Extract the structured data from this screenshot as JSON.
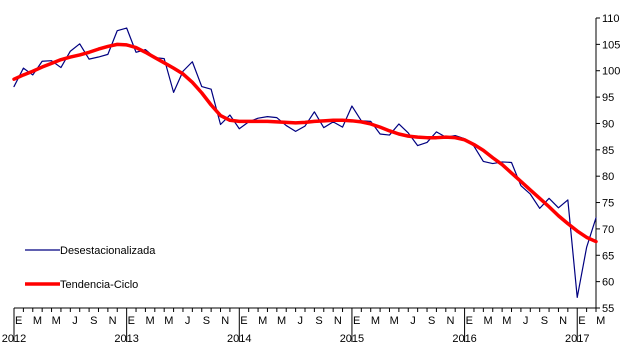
{
  "chart_data": {
    "type": "line",
    "title": "",
    "xlabel": "",
    "ylabel": "",
    "ylim": [
      55,
      110
    ],
    "yticks": [
      55,
      60,
      65,
      70,
      75,
      80,
      85,
      90,
      95,
      100,
      105,
      110
    ],
    "y_axis_side": "right",
    "grid": false,
    "legend_position": "bottom-left",
    "x_start": "2012-01",
    "month_tick_letters": [
      "E",
      "M",
      "M",
      "J",
      "S",
      "N"
    ],
    "year_labels": [
      "2012",
      "2013",
      "2014",
      "2015",
      "2016",
      "2017"
    ],
    "series": [
      {
        "name": "Desestacionalizada",
        "color": "#000080",
        "values": [
          97,
          100.5,
          99.2,
          101.8,
          101.9,
          100.6,
          103.7,
          105.1,
          102.2,
          102.6,
          103.1,
          107.6,
          108.1,
          103.5,
          104,
          102.5,
          102.3,
          95.9,
          99.9,
          101.7,
          97,
          96.5,
          89.8,
          91.6,
          89,
          90.3,
          91,
          91.3,
          91.1,
          89.6,
          88.5,
          89.5,
          92.2,
          89.2,
          90.3,
          89.3,
          93.3,
          90.5,
          90.4,
          88,
          87.8,
          89.9,
          88.2,
          85.8,
          86.4,
          88.4,
          87.4,
          87.7,
          87.1,
          85.7,
          82.8,
          82.4,
          82.7,
          82.6,
          78.2,
          76.6,
          73.9,
          75.8,
          74,
          75.5,
          57,
          66.5,
          72.1
        ]
      },
      {
        "name": "Tendencia-Ciclo",
        "color": "#ff0000",
        "values": [
          98.4,
          99.2,
          99.9,
          100.7,
          101.4,
          102.1,
          102.6,
          103,
          103.5,
          104.1,
          104.6,
          105,
          104.9,
          104.4,
          103.5,
          102.5,
          101.5,
          100.5,
          99.4,
          97.8,
          95.8,
          93.5,
          91.5,
          90.6,
          90.4,
          90.4,
          90.4,
          90.4,
          90.3,
          90.2,
          90.1,
          90.2,
          90.4,
          90.5,
          90.6,
          90.6,
          90.5,
          90.3,
          89.9,
          89.3,
          88.6,
          88,
          87.6,
          87.4,
          87.3,
          87.3,
          87.4,
          87.3,
          86.9,
          86,
          84.9,
          83.5,
          82.2,
          80.6,
          79,
          77.4,
          75.8,
          74.2,
          72.5,
          71,
          69.6,
          68.4,
          67.6
        ]
      }
    ]
  }
}
